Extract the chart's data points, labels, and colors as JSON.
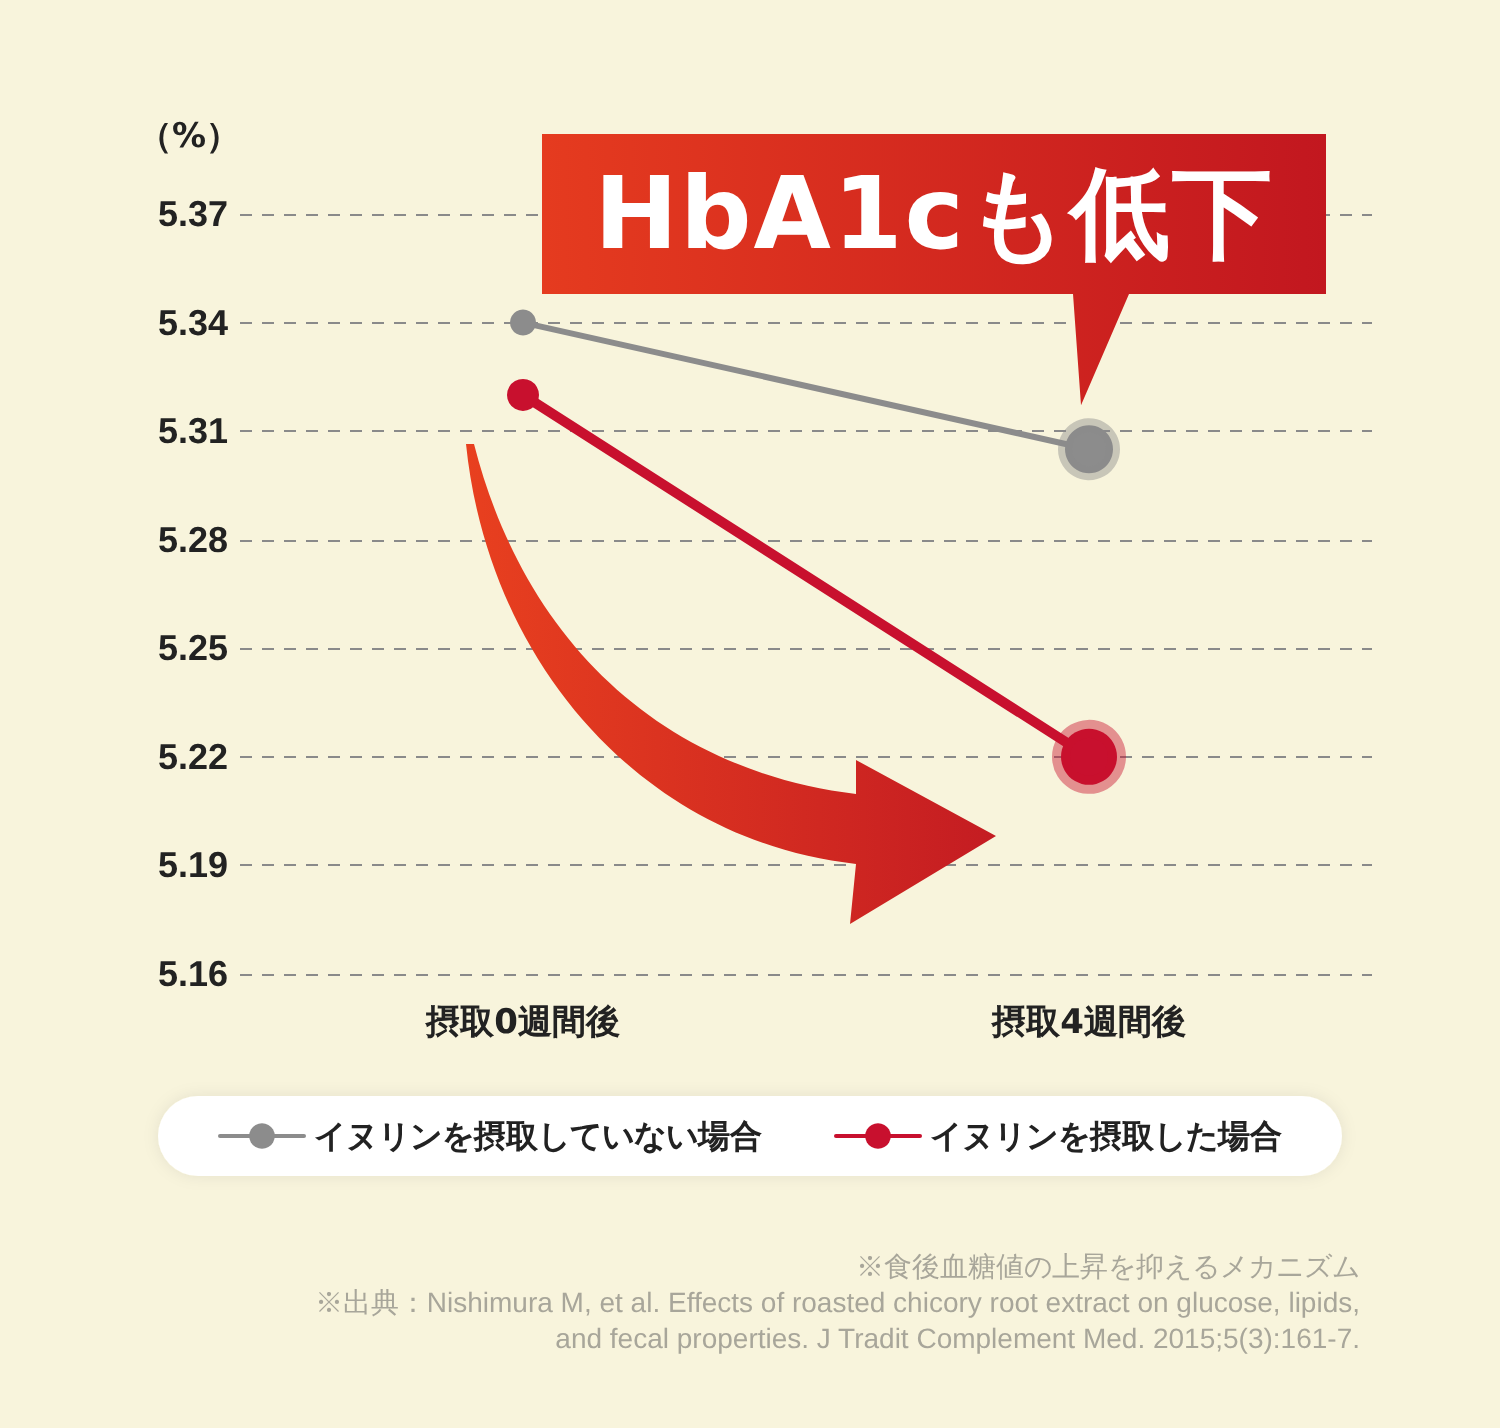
{
  "chart_data": {
    "type": "line",
    "categories": [
      "摂取0週間後",
      "摂取4週間後"
    ],
    "series": [
      {
        "name": "イヌリンを摂取していない場合",
        "color": "#8c8c8c",
        "values": [
          5.34,
          5.305
        ]
      },
      {
        "name": "イヌリンを摂取した場合",
        "color": "#c8102e",
        "values": [
          5.32,
          5.22
        ]
      }
    ],
    "ylabel": "（%）",
    "ylim": [
      5.16,
      5.37
    ],
    "yticks": [
      5.16,
      5.19,
      5.22,
      5.25,
      5.28,
      5.31,
      5.34,
      5.37
    ],
    "grid": "y",
    "legend": "bottom",
    "marker": "circle",
    "line_style": "solid",
    "annotations": [
      {
        "text": "HbA1cも低下",
        "x": "摂取4週間後",
        "y": 5.305
      },
      "※食後血糖値の上昇を抑えるメカニズム",
      "※出典：Nishimura M, et al. Effects of roasted chicory root extract on glucose, lipids, and fecal properties. J Tradit Complement Med. 2015;5(3):161-7."
    ]
  }
}
